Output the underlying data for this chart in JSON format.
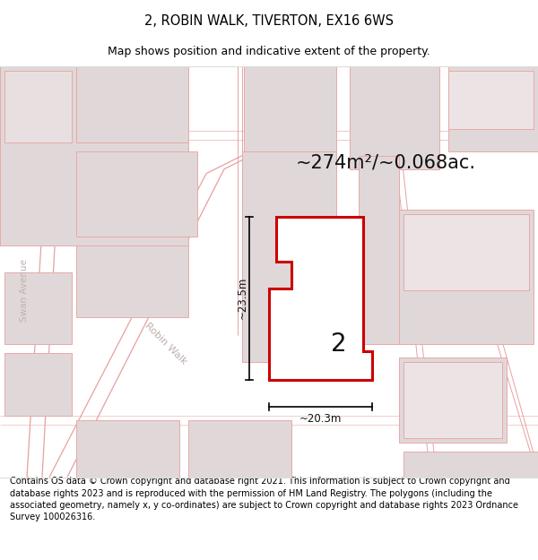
{
  "title": "2, ROBIN WALK, TIVERTON, EX16 6WS",
  "subtitle": "Map shows position and indicative extent of the property.",
  "area_label": "~274m²/~0.068ac.",
  "number_label": "2",
  "dim_width_label": "~20.3m",
  "dim_height_label": "~23.5m",
  "footer": "Contains OS data © Crown copyright and database right 2021. This information is subject to Crown copyright and database rights 2023 and is reproduced with the permission of HM Land Registry. The polygons (including the associated geometry, namely x, y co-ordinates) are subject to Crown copyright and database rights 2023 Ordnance Survey 100026316.",
  "map_bg": "#f2eeee",
  "building_color": "#e0d8d8",
  "building_edge": "#e8a8a8",
  "plot_fill": "#ffffff",
  "plot_edge": "#cc0000",
  "road_line": "#e8a0a0",
  "title_fontsize": 10.5,
  "subtitle_fontsize": 9,
  "area_fontsize": 15,
  "footer_fontsize": 7.0,
  "street_color": "#c0b0b0"
}
